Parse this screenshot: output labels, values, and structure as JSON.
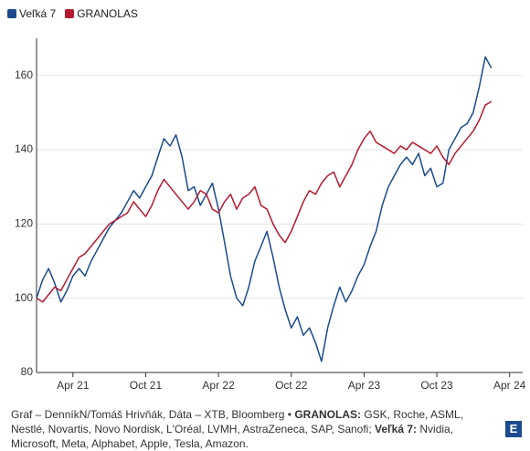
{
  "chart_data": {
    "type": "line",
    "x": [
      2021,
      2021.042,
      2021.083,
      2021.125,
      2021.167,
      2021.208,
      2021.25,
      2021.292,
      2021.333,
      2021.375,
      2021.417,
      2021.458,
      2021.5,
      2021.542,
      2021.583,
      2021.625,
      2021.667,
      2021.708,
      2021.75,
      2021.792,
      2021.833,
      2021.875,
      2021.917,
      2021.958,
      2022,
      2022.042,
      2022.083,
      2022.125,
      2022.167,
      2022.208,
      2022.25,
      2022.292,
      2022.333,
      2022.375,
      2022.417,
      2022.458,
      2022.5,
      2022.542,
      2022.583,
      2022.625,
      2022.667,
      2022.708,
      2022.75,
      2022.792,
      2022.833,
      2022.875,
      2022.917,
      2022.958,
      2023,
      2023.042,
      2023.083,
      2023.125,
      2023.167,
      2023.208,
      2023.25,
      2023.292,
      2023.333,
      2023.375,
      2023.417,
      2023.458,
      2023.5,
      2023.542,
      2023.583,
      2023.625,
      2023.667,
      2023.708,
      2023.75,
      2023.792,
      2023.833,
      2023.875,
      2023.917,
      2023.958,
      2024,
      2024.042,
      2024.083,
      2024.125
    ],
    "series": [
      {
        "name": "Veľká 7",
        "color": "#1b4b8c",
        "values": [
          100,
          105,
          108,
          104,
          99,
          102,
          106,
          108,
          106,
          110,
          113,
          116,
          119,
          121,
          123,
          126,
          129,
          127,
          130,
          133,
          138,
          143,
          141,
          144,
          138,
          129,
          130,
          125,
          128,
          131,
          124,
          115,
          106,
          100,
          98,
          103,
          110,
          114,
          118,
          111,
          103,
          97,
          92,
          95,
          90,
          92,
          88,
          83,
          92,
          98,
          103,
          99,
          102,
          106,
          109,
          114,
          118,
          125,
          130,
          133,
          136,
          138,
          136,
          139,
          133,
          135,
          130,
          131,
          140,
          143,
          146,
          147,
          150,
          157,
          165,
          162
        ]
      },
      {
        "name": "GRANOLAS",
        "color": "#b3192f",
        "values": [
          100,
          99,
          101,
          103,
          102,
          105,
          108,
          111,
          112,
          114,
          116,
          118,
          120,
          121,
          122,
          123,
          126,
          124,
          122,
          125,
          129,
          132,
          130,
          128,
          126,
          124,
          126,
          129,
          128,
          124,
          123,
          126,
          128,
          124,
          127,
          128,
          130,
          125,
          124,
          120,
          117,
          115,
          118,
          122,
          126,
          129,
          128,
          131,
          133,
          134,
          130,
          133,
          136,
          140,
          143,
          145,
          142,
          141,
          140,
          139,
          141,
          140,
          142,
          141,
          140,
          139,
          141,
          138,
          136,
          139,
          141,
          143,
          145,
          148,
          152,
          153
        ]
      }
    ],
    "xlim": [
      2021,
      2024.34
    ],
    "xticks": [
      {
        "value": 2021.25,
        "label": "Apr 21"
      },
      {
        "value": 2021.75,
        "label": "Oct 21"
      },
      {
        "value": 2022.25,
        "label": "Apr 22"
      },
      {
        "value": 2022.75,
        "label": "Oct 22"
      },
      {
        "value": 2023.25,
        "label": "Apr 23"
      },
      {
        "value": 2023.75,
        "label": "Oct 23"
      },
      {
        "value": 2024.25,
        "label": "Apr 24"
      }
    ],
    "ylim": [
      80,
      170
    ],
    "yticks": [
      80,
      100,
      120,
      140,
      160
    ],
    "grid": true
  },
  "footer": {
    "credit": "Graf – DenníkN/Tomáš Hrivňák, Dáta – XTB, Bloomberg •",
    "granolas_label": "GRANOLAS:",
    "granolas_list": "GSK, Roche, ASML, Nestlé, Novartis, Novo Nordisk, L'Oréal, LVMH, AstraZeneca, SAP, Sanofi;",
    "big7_label": "Veľká 7:",
    "big7_list": "Nvidia, Microsoft, Meta, Alphabet, Apple, Tesla, Amazon."
  }
}
